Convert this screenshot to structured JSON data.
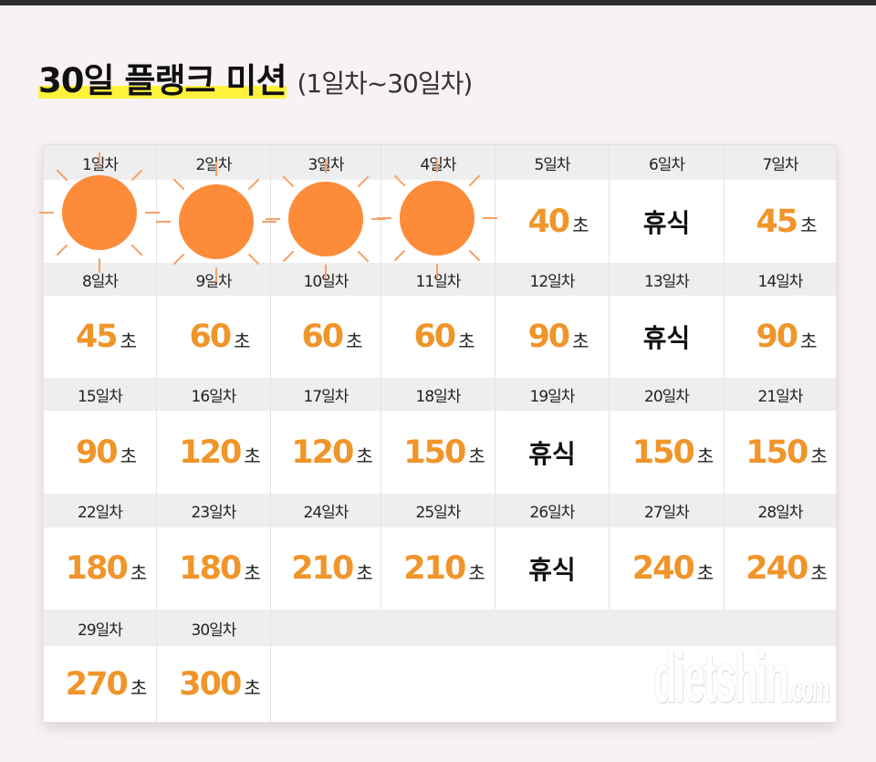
{
  "header": {
    "title": "30일 플랭크 미션",
    "subtitle": "(1일차~30일차)",
    "highlight_color": "#fef33a"
  },
  "colors": {
    "value": "#f0952a",
    "sticker": "#fd8c3a",
    "header_row": "#eeeeee",
    "background": "#f8f2f6"
  },
  "unit": "초",
  "rest_label": "휴식",
  "days": [
    {
      "label": "1일차",
      "value": "",
      "hidden": true
    },
    {
      "label": "2일차",
      "value": "",
      "hidden": true
    },
    {
      "label": "3일차",
      "value": "",
      "hidden": true
    },
    {
      "label": "4일차",
      "value": "",
      "hidden": true
    },
    {
      "label": "5일차",
      "value": "40"
    },
    {
      "label": "6일차",
      "rest": true
    },
    {
      "label": "7일차",
      "value": "45"
    },
    {
      "label": "8일차",
      "value": "45"
    },
    {
      "label": "9일차",
      "value": "60"
    },
    {
      "label": "10일차",
      "value": "60"
    },
    {
      "label": "11일차",
      "value": "60"
    },
    {
      "label": "12일차",
      "value": "90"
    },
    {
      "label": "13일차",
      "rest": true
    },
    {
      "label": "14일차",
      "value": "90"
    },
    {
      "label": "15일차",
      "value": "90"
    },
    {
      "label": "16일차",
      "value": "120"
    },
    {
      "label": "17일차",
      "value": "120"
    },
    {
      "label": "18일차",
      "value": "150"
    },
    {
      "label": "19일차",
      "rest": true
    },
    {
      "label": "20일차",
      "value": "150"
    },
    {
      "label": "21일차",
      "value": "150"
    },
    {
      "label": "22일차",
      "value": "180"
    },
    {
      "label": "23일차",
      "value": "180"
    },
    {
      "label": "24일차",
      "value": "210"
    },
    {
      "label": "25일차",
      "value": "210"
    },
    {
      "label": "26일차",
      "rest": true
    },
    {
      "label": "27일차",
      "value": "240"
    },
    {
      "label": "28일차",
      "value": "240"
    },
    {
      "label": "29일차",
      "value": "270"
    },
    {
      "label": "30일차",
      "value": "300"
    }
  ],
  "stickers": [
    "sun-sticker",
    "sun-sticker",
    "sun-sticker",
    "sun-sticker"
  ],
  "watermark": {
    "main": "dietshin",
    "suffix": ".com"
  }
}
